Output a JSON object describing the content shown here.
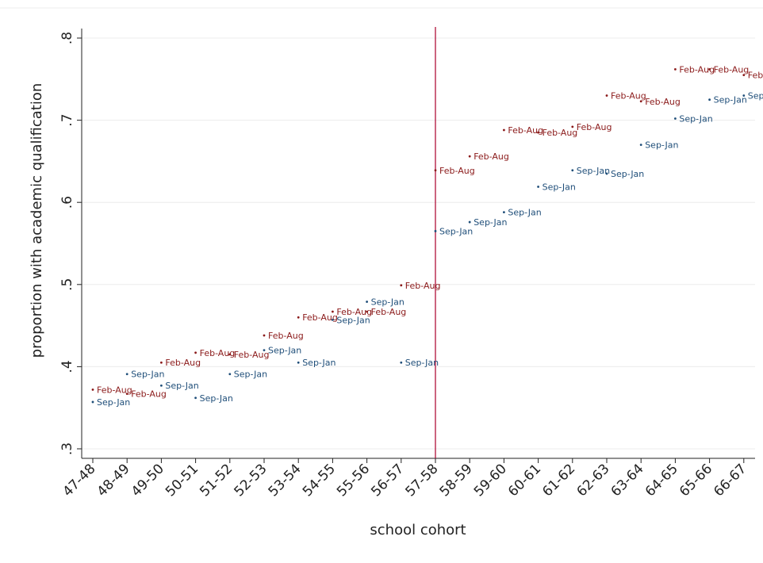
{
  "chart_data": {
    "type": "scatter",
    "title": "",
    "xlabel": "school cohort",
    "ylabel": "proportion with academic qualification",
    "categories": [
      "47-48",
      "48-49",
      "49-50",
      "50-51",
      "51-52",
      "52-53",
      "53-54",
      "54-55",
      "55-56",
      "56-57",
      "57-58",
      "58-59",
      "59-60",
      "60-61",
      "61-62",
      "62-63",
      "63-64",
      "64-65",
      "65-66",
      "66-67"
    ],
    "ylim": [
      0.3,
      0.8
    ],
    "y_ticks": [
      0.3,
      0.4,
      0.5,
      0.6,
      0.7,
      0.8
    ],
    "y_tick_labels": [
      ".3",
      ".4",
      ".5",
      ".6",
      ".7",
      ".8"
    ],
    "grid": true,
    "reference_line": {
      "category": "57-58",
      "color": "#b0103a"
    },
    "series": [
      {
        "marker_label": "Feb-Aug",
        "color": "#8b1a1a",
        "points": [
          {
            "x": "47-48",
            "y": 0.372
          },
          {
            "x": "48-49",
            "y": 0.367
          },
          {
            "x": "49-50",
            "y": 0.405
          },
          {
            "x": "50-51",
            "y": 0.417
          },
          {
            "x": "51-52",
            "y": 0.415
          },
          {
            "x": "52-53",
            "y": 0.438
          },
          {
            "x": "53-54",
            "y": 0.46
          },
          {
            "x": "54-55",
            "y": 0.467
          },
          {
            "x": "55-56",
            "y": 0.467
          },
          {
            "x": "56-57",
            "y": 0.499
          },
          {
            "x": "57-58",
            "y": 0.639
          },
          {
            "x": "58-59",
            "y": 0.656
          },
          {
            "x": "59-60",
            "y": 0.688
          },
          {
            "x": "60-61",
            "y": 0.685
          },
          {
            "x": "61-62",
            "y": 0.692
          },
          {
            "x": "62-63",
            "y": 0.73
          },
          {
            "x": "63-64",
            "y": 0.723
          },
          {
            "x": "64-65",
            "y": 0.762
          },
          {
            "x": "65-66",
            "y": 0.762
          },
          {
            "x": "66-67",
            "y": 0.755
          }
        ]
      },
      {
        "marker_label": "Sep-Jan",
        "color": "#1f4e79",
        "points": [
          {
            "x": "47-48",
            "y": 0.357
          },
          {
            "x": "48-49",
            "y": 0.391
          },
          {
            "x": "49-50",
            "y": 0.377
          },
          {
            "x": "50-51",
            "y": 0.362
          },
          {
            "x": "51-52",
            "y": 0.391
          },
          {
            "x": "52-53",
            "y": 0.42
          },
          {
            "x": "53-54",
            "y": 0.405
          },
          {
            "x": "54-55",
            "y": 0.457
          },
          {
            "x": "55-56",
            "y": 0.479
          },
          {
            "x": "56-57",
            "y": 0.405
          },
          {
            "x": "57-58",
            "y": 0.565
          },
          {
            "x": "58-59",
            "y": 0.576
          },
          {
            "x": "59-60",
            "y": 0.588
          },
          {
            "x": "60-61",
            "y": 0.619
          },
          {
            "x": "61-62",
            "y": 0.639
          },
          {
            "x": "62-63",
            "y": 0.635
          },
          {
            "x": "63-64",
            "y": 0.67
          },
          {
            "x": "64-65",
            "y": 0.702
          },
          {
            "x": "65-66",
            "y": 0.725
          },
          {
            "x": "66-67",
            "y": 0.73
          }
        ]
      }
    ]
  }
}
